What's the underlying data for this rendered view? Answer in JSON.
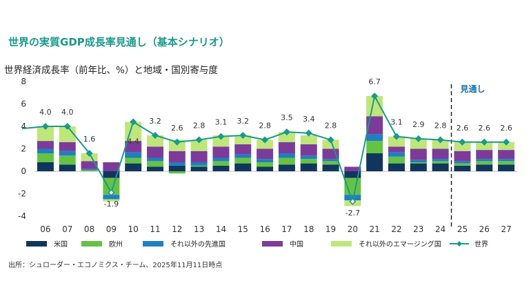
{
  "title": "世界の実質GDP成長率見通し（基本シナリオ）",
  "subtitle": "世界経済成長率（前年比、%）と地域・国別寄与度",
  "source": "出所：シュローダー・エコノミクス・チーム、2025年11月11日時点",
  "forecast_label": "見通し",
  "chart_data": {
    "type": "bar",
    "stacked": true,
    "categories": [
      "06",
      "07",
      "08",
      "09",
      "10",
      "11",
      "12",
      "13",
      "14",
      "15",
      "16",
      "17",
      "18",
      "19",
      "20",
      "21",
      "22",
      "23",
      "24",
      "25",
      "26",
      "27"
    ],
    "ylim": [
      -4,
      8
    ],
    "yticks": [
      -4,
      -2,
      0,
      2,
      4,
      6,
      8
    ],
    "forecast_start": "25",
    "series": [
      {
        "name": "米国",
        "color": "#10365d",
        "values": [
          0.8,
          0.6,
          0.0,
          -0.6,
          0.7,
          0.4,
          0.5,
          0.4,
          0.5,
          0.7,
          0.4,
          0.6,
          0.7,
          0.6,
          -0.6,
          1.6,
          0.7,
          0.7,
          0.7,
          0.5,
          0.6,
          0.6
        ]
      },
      {
        "name": "欧州",
        "color": "#66c244",
        "values": [
          0.8,
          0.8,
          0.1,
          -1.5,
          0.5,
          0.5,
          -0.2,
          0.1,
          0.4,
          0.5,
          0.4,
          0.6,
          0.4,
          0.3,
          -1.5,
          1.1,
          0.6,
          0.1,
          0.2,
          0.2,
          0.3,
          0.3
        ]
      },
      {
        "name": "それ以外の先進国",
        "color": "#1f7fc0",
        "values": [
          0.4,
          0.4,
          0.1,
          -0.4,
          0.5,
          0.3,
          0.3,
          0.3,
          0.3,
          0.3,
          0.3,
          0.4,
          0.3,
          0.2,
          -0.5,
          0.6,
          0.4,
          0.2,
          0.2,
          0.2,
          0.2,
          0.2
        ]
      },
      {
        "name": "中国",
        "color": "#7d3b99",
        "values": [
          0.7,
          0.8,
          0.7,
          0.8,
          1.0,
          1.0,
          1.0,
          1.0,
          1.0,
          0.9,
          0.9,
          1.0,
          1.0,
          0.9,
          0.4,
          1.6,
          0.5,
          1.0,
          0.9,
          0.9,
          0.8,
          0.8
        ]
      },
      {
        "name": "それ以外のエマージング国",
        "color": "#bfe67a",
        "values": [
          1.3,
          1.4,
          0.7,
          -0.2,
          1.7,
          1.0,
          1.0,
          1.0,
          1.0,
          0.8,
          0.8,
          0.9,
          0.8,
          0.8,
          -0.5,
          1.8,
          0.9,
          0.9,
          0.8,
          0.8,
          0.7,
          0.7
        ]
      }
    ],
    "line": {
      "name": "世界",
      "color": "#1a9a8c",
      "values": [
        4.0,
        4.0,
        1.6,
        -1.9,
        4.4,
        3.2,
        2.6,
        2.8,
        3.1,
        3.2,
        2.8,
        3.5,
        3.4,
        2.8,
        -2.7,
        6.7,
        3.1,
        2.9,
        2.8,
        2.6,
        2.6,
        2.6
      ],
      "labels": [
        "4.0",
        "4.0",
        "1.6",
        "-1.9",
        "4.4",
        "3.2",
        "2.6",
        "2.8",
        "3.1",
        "3.2",
        "2.8",
        "3.5",
        "3.4",
        "2.8",
        "-2.7",
        "6.7",
        "3.1",
        "2.9",
        "2.8",
        "2.6",
        "2.6",
        "2.6"
      ]
    }
  }
}
